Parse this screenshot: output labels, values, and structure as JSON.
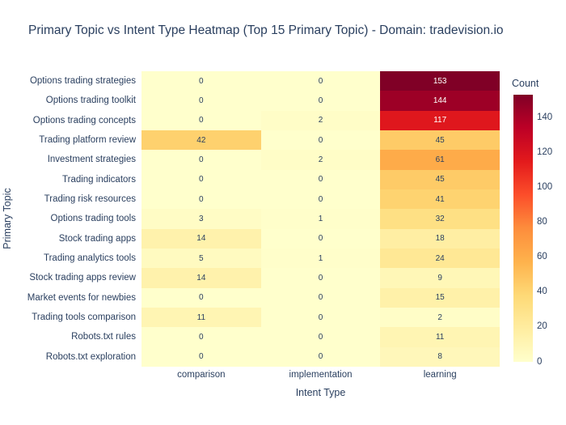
{
  "chart": {
    "title": "Primary Topic vs Intent Type Heatmap (Top 15 Primary Topic) - Domain: tradevision.io",
    "xlabel": "Intent Type",
    "ylabel": "Primary Topic",
    "colorbar_title": "Count"
  },
  "colors": {
    "font": "#2a3f5f",
    "background": "#ffffff",
    "cell_text_light": "#ffffff"
  },
  "chart_data": {
    "type": "heatmap",
    "title": "Primary Topic vs Intent Type Heatmap (Top 15 Primary Topic) - Domain: tradevision.io",
    "xlabel": "Intent Type",
    "ylabel": "Primary Topic",
    "x_categories": [
      "comparison",
      "implementation",
      "learning"
    ],
    "y_categories": [
      "Options trading strategies",
      "Options trading toolkit",
      "Options trading concepts",
      "Trading platform review",
      "Investment strategies",
      "Trading indicators",
      "Trading risk resources",
      "Options trading tools",
      "Stock trading apps",
      "Trading analytics tools",
      "Stock trading apps review",
      "Market events for newbies",
      "Trading tools comparison",
      "Robots.txt rules",
      "Robots.txt exploration"
    ],
    "values": [
      [
        0,
        0,
        153
      ],
      [
        0,
        0,
        144
      ],
      [
        0,
        2,
        117
      ],
      [
        42,
        0,
        45
      ],
      [
        0,
        2,
        61
      ],
      [
        0,
        0,
        45
      ],
      [
        0,
        0,
        41
      ],
      [
        3,
        1,
        32
      ],
      [
        14,
        0,
        18
      ],
      [
        5,
        1,
        24
      ],
      [
        14,
        0,
        9
      ],
      [
        0,
        0,
        15
      ],
      [
        11,
        0,
        2
      ],
      [
        0,
        0,
        11
      ],
      [
        0,
        0,
        8
      ]
    ],
    "zmin": 0,
    "zmax": 153,
    "colorbar": {
      "title": "Count",
      "ticks": [
        0,
        20,
        40,
        60,
        80,
        100,
        120,
        140
      ],
      "position": "right"
    },
    "colorscale_name": "YlOrRd",
    "colorscale_stops": [
      [
        0.0,
        "#ffffcc"
      ],
      [
        0.125,
        "#ffeda0"
      ],
      [
        0.25,
        "#fed976"
      ],
      [
        0.375,
        "#feb24c"
      ],
      [
        0.5,
        "#fd8d3c"
      ],
      [
        0.625,
        "#fc4e2a"
      ],
      [
        0.75,
        "#e31a1c"
      ],
      [
        0.875,
        "#bd0026"
      ],
      [
        1.0,
        "#800026"
      ]
    ],
    "grid": false,
    "legend_position": "right"
  }
}
